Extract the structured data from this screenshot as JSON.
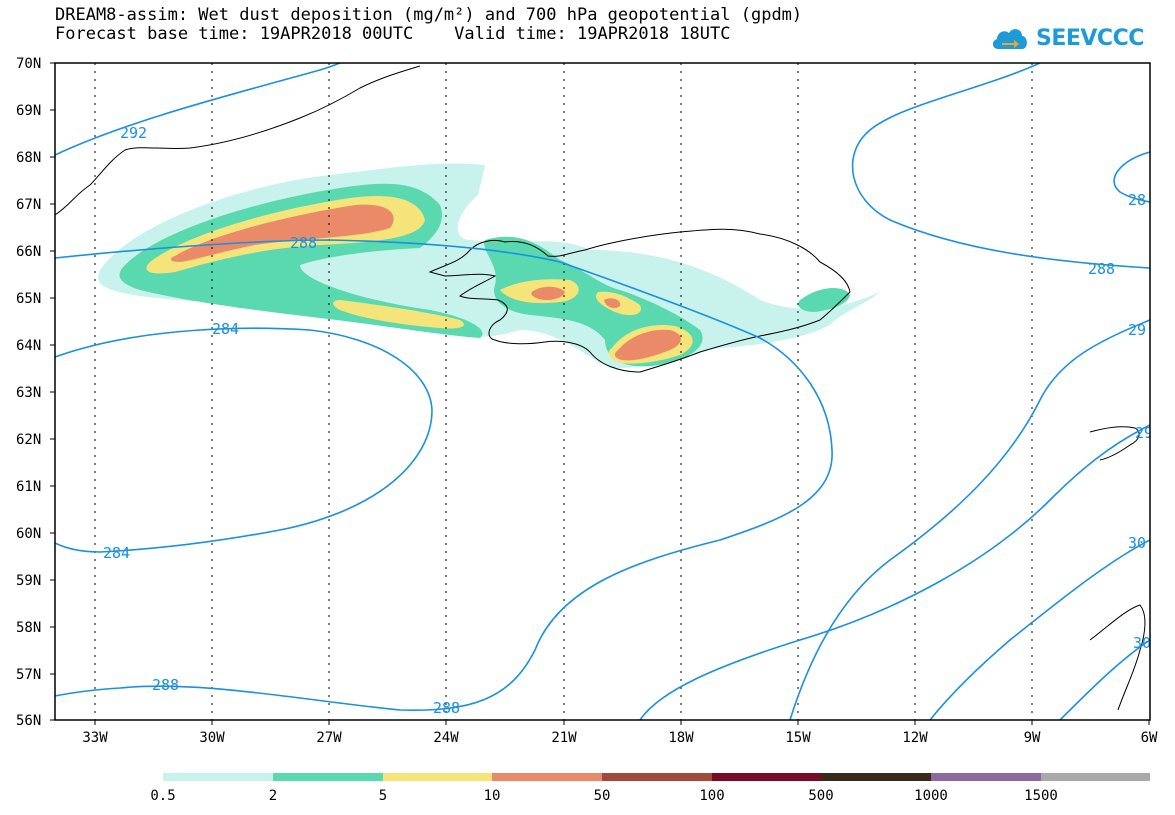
{
  "title": {
    "line1": "DREAM8-assim: Wet dust deposition (mg/m²) and 700 hPa geopotential (gpdm)",
    "line2": "Forecast base time: 19APR2018 00UTC    Valid time: 19APR2018 18UTC"
  },
  "logo": {
    "text": "SEEVCCC"
  },
  "axes": {
    "lat_labels": [
      "70N",
      "69N",
      "68N",
      "67N",
      "66N",
      "65N",
      "64N",
      "63N",
      "62N",
      "61N",
      "60N",
      "59N",
      "58N",
      "57N",
      "56N"
    ],
    "lon_labels": [
      "33W",
      "30W",
      "27W",
      "24W",
      "21W",
      "18W",
      "15W",
      "12W",
      "9W",
      "6W"
    ]
  },
  "contour_labels": [
    "292",
    "288",
    "284",
    "284",
    "288",
    "288",
    "288",
    "28",
    "29",
    "29",
    "30",
    "30"
  ],
  "colorbar": {
    "ticks": [
      "0.5",
      "2",
      "5",
      "10",
      "50",
      "100",
      "500",
      "1000",
      "1500"
    ],
    "colors": [
      "#c8f2ec",
      "#5ad9b0",
      "#f5e47a",
      "#ea8a68",
      "#a04a3e",
      "#7a0a24",
      "#3a2a1a",
      "#8c6aa0",
      "#a9a9a9"
    ]
  },
  "colors": {
    "contour": "#1a90e0",
    "coast": "#000000"
  }
}
